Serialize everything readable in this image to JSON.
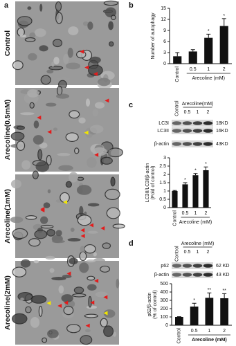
{
  "figure": {
    "panel_labels": [
      "a",
      "b",
      "c",
      "d"
    ],
    "images": [
      "Control",
      "Arecoline(0.5mM)",
      "Arecoline(1mM)",
      "Arecoline(2mM)"
    ],
    "blots": [
      {
        "control": "Control",
        "group": "Arecoline(mM)",
        "lanes": [
          "0.5",
          "1",
          "2"
        ],
        "rows": [
          "LC3I",
          "LC3II",
          "β-actin"
        ],
        "sizes": [
          "18KD",
          "16KD",
          "43KD"
        ]
      },
      {
        "control": "Control",
        "group": "Arecoline (mM)",
        "lanes": [
          "0.5",
          "1",
          "2"
        ],
        "rows": [
          "p62",
          "β-actin"
        ],
        "sizes": [
          "62 KD",
          "43 KD"
        ]
      }
    ]
  },
  "chart_data": [
    {
      "type": "bar",
      "y_label": [
        "Number of autophagy"
      ],
      "x_label": "Arecoline (mM)",
      "categories": [
        "Control",
        "0.5",
        "1",
        "2"
      ],
      "values": [
        2,
        3.3,
        7,
        10.2
      ],
      "errors": [
        1,
        0.5,
        1,
        2
      ],
      "markers": [
        null,
        null,
        "*",
        "*"
      ],
      "color": "#111111",
      "ylim": [
        0,
        15
      ],
      "yticks": [
        0,
        3,
        6,
        9,
        12,
        15
      ]
    },
    {
      "type": "bar",
      "y_label": [
        "LC3II/LC3I/β-actin",
        "(Fold of control)"
      ],
      "x_label": "Arecoline (mM)",
      "categories": [
        "Control",
        "0.5",
        "1",
        "2"
      ],
      "values": [
        1,
        1.4,
        1.95,
        2.25
      ],
      "errors": [
        0.03,
        0.1,
        0.1,
        0.2
      ],
      "markers": [
        null,
        "*",
        "*",
        "*"
      ],
      "color": "#111111",
      "ylim": [
        0,
        3
      ],
      "yticks": [
        0,
        0.5,
        1,
        1.5,
        2,
        2.5,
        3
      ]
    },
    {
      "type": "bar",
      "y_label": [
        "p62/β-actin",
        "(% of control)"
      ],
      "x_label": "Arecoline (mM)",
      "categories": [
        "Control",
        "0.5",
        "1",
        "2"
      ],
      "values": [
        100,
        225,
        330,
        325
      ],
      "errors": [
        3,
        40,
        60,
        55
      ],
      "markers": [
        null,
        "*",
        "**",
        "**"
      ],
      "color": "#111111",
      "ylim": [
        0,
        500
      ],
      "yticks": [
        0,
        100,
        200,
        300,
        400,
        500
      ]
    }
  ]
}
